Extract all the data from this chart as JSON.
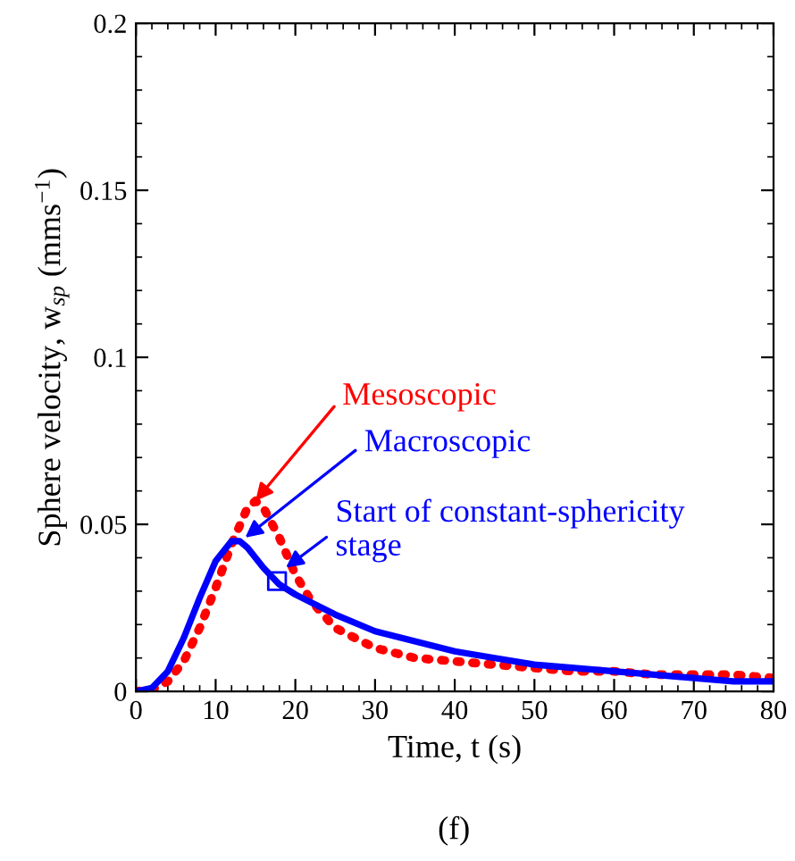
{
  "chart_data": {
    "type": "line",
    "xlabel": "Time, t (s)",
    "ylabel": "Sphere velocity, w$_{sp}$ (mms$^{−1}$)",
    "xlim": [
      0,
      80
    ],
    "ylim": [
      0,
      0.2
    ],
    "xticks": [
      0,
      10,
      20,
      30,
      40,
      50,
      60,
      70,
      80
    ],
    "yticks": [
      0,
      {
        "value": 0.05,
        "label": "0.05"
      },
      {
        "value": 0.1,
        "label": "0.1"
      },
      {
        "value": 0.15,
        "label": "0.15"
      },
      {
        "value": 0.2,
        "label": "0.2"
      }
    ],
    "grid": false,
    "legend": false,
    "series": [
      {
        "color": "#ff0000",
        "line_style": "dotted",
        "x": [
          0,
          2,
          4,
          6,
          8,
          10,
          12,
          14,
          15,
          16,
          18,
          20,
          22,
          25,
          30,
          35,
          40,
          45,
          50,
          55,
          60,
          65,
          70,
          75,
          80
        ],
        "values": [
          0,
          0.0005,
          0.003,
          0.009,
          0.019,
          0.031,
          0.044,
          0.055,
          0.057,
          0.055,
          0.046,
          0.035,
          0.027,
          0.019,
          0.013,
          0.01,
          0.009,
          0.008,
          0.007,
          0.006,
          0.006,
          0.005,
          0.005,
          0.005,
          0.004
        ]
      },
      {
        "color": "#0000ff",
        "line_style": "solid",
        "x": [
          0,
          2,
          4,
          6,
          8,
          10,
          12,
          13,
          14,
          16,
          18,
          20,
          25,
          30,
          35,
          40,
          45,
          50,
          55,
          60,
          65,
          70,
          75,
          80
        ],
        "values": [
          0,
          0.001,
          0.006,
          0.016,
          0.028,
          0.039,
          0.045,
          0.045,
          0.043,
          0.037,
          0.032,
          0.029,
          0.023,
          0.018,
          0.015,
          0.012,
          0.01,
          0.008,
          0.007,
          0.006,
          0.005,
          0.004,
          0.003,
          0.003
        ]
      },
      {
        "type": "scatter",
        "color": "#0000ff",
        "marker": "square",
        "x": [
          17.7
        ],
        "values": [
          0.033
        ]
      }
    ],
    "annotations": [
      {
        "text": "Mesoscopic",
        "x": 15,
        "y": 0.057
      },
      {
        "text": "Macroscopic",
        "x": 13.7,
        "y": 0.046
      },
      {
        "text": "Start of constant-sphericity\nstage",
        "x": 18.8,
        "y": 0.037
      },
      "(f)"
    ]
  }
}
